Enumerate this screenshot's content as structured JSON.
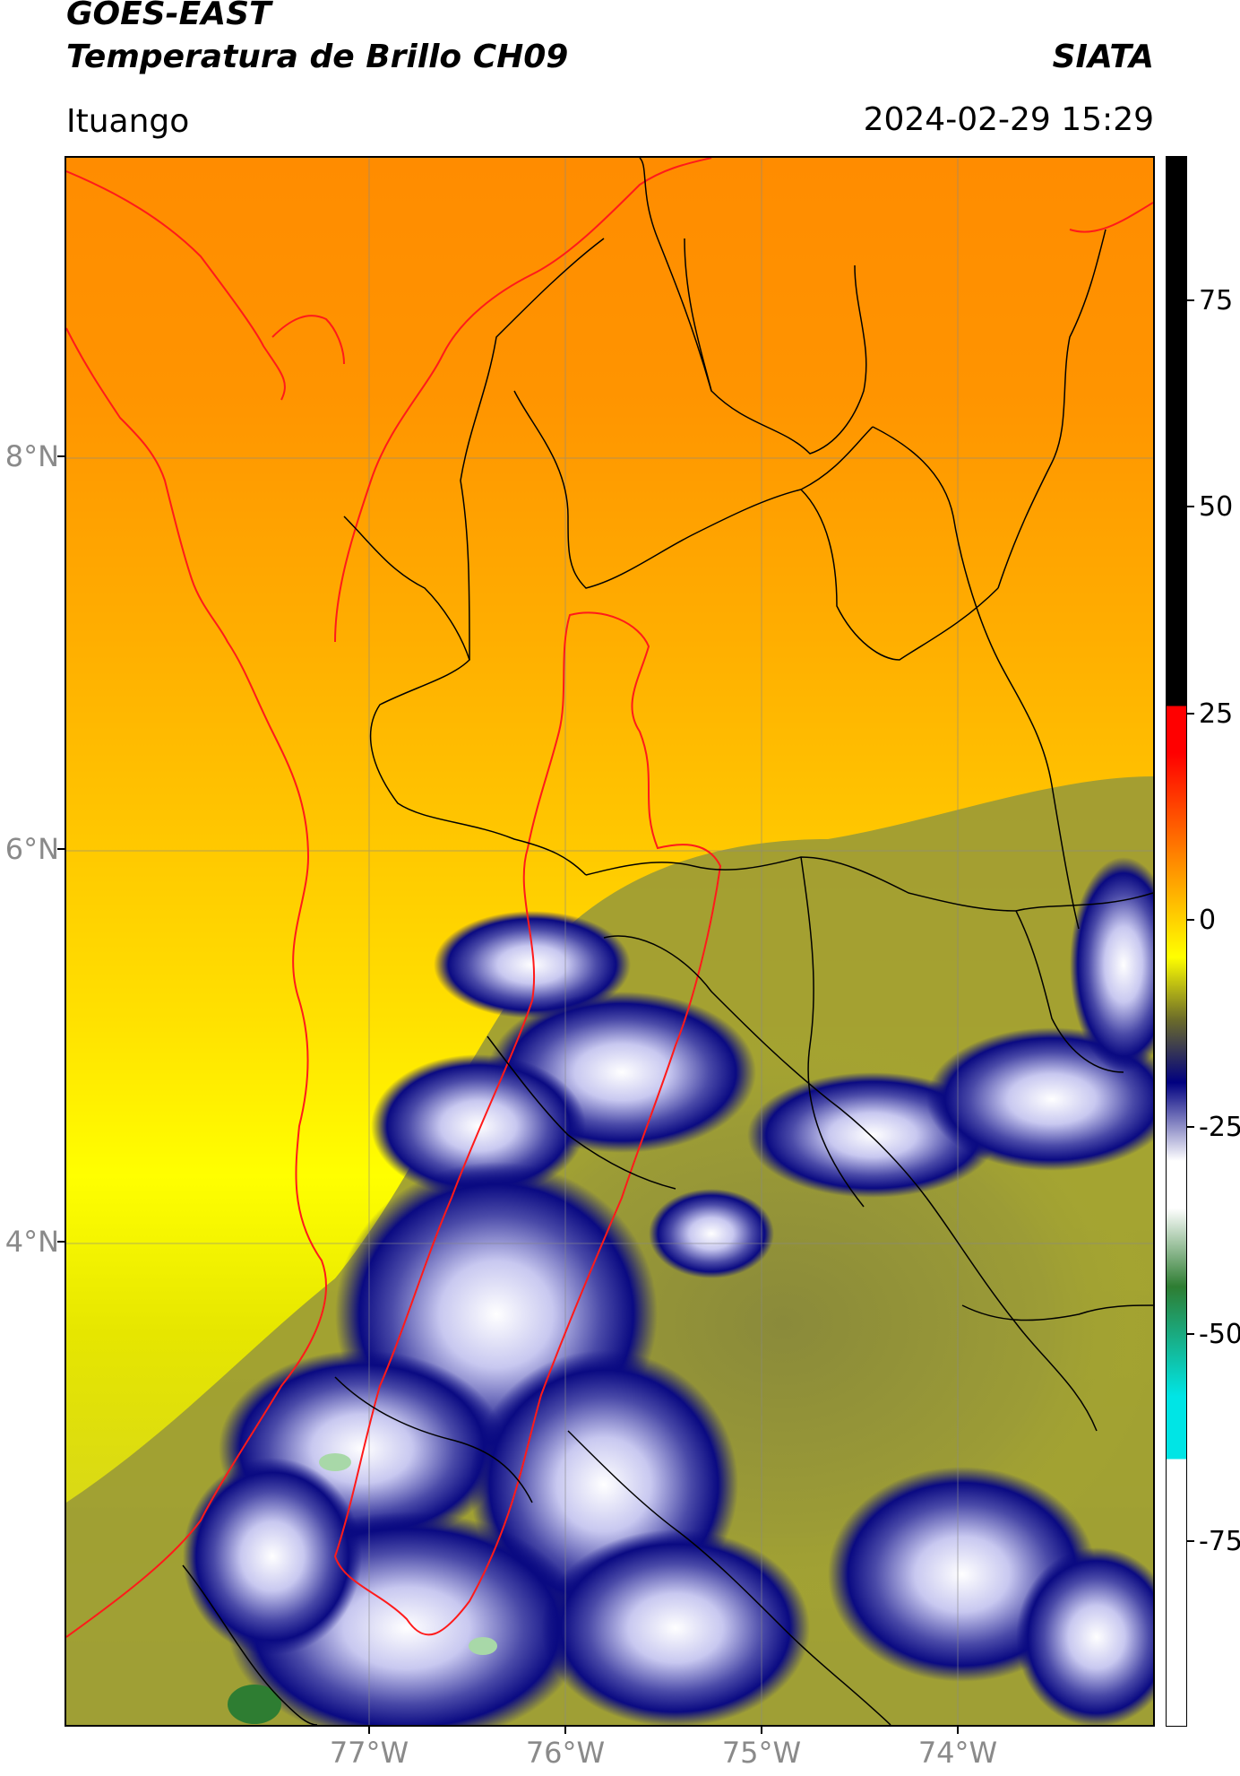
{
  "header": {
    "title_line1": "GOES-EAST",
    "title_line2": "Temperatura de Brillo CH09",
    "brand": "SIATA",
    "region": "Ituango",
    "datetime": "2024-02-29 15:29"
  },
  "map": {
    "latitude_labels": [
      "8°N",
      "6°N",
      "4°N"
    ],
    "longitude_labels": [
      "77°W",
      "76°W",
      "75°W",
      "74°W"
    ],
    "basin_outline_color": "#ff1a1a",
    "admin_boundary_color": "#000000"
  },
  "colorbar": {
    "tick_labels": [
      "75",
      "50",
      "25",
      "0",
      "-25",
      "-50",
      "-75"
    ],
    "colors": {
      "black_top": "#000000",
      "red": "#ff0000",
      "orange": "#ff8c00",
      "yellow": "#ffff00",
      "olive": "#6b6b2a",
      "navy": "#000080",
      "white": "#ffffff",
      "green": "#2e7d32",
      "cyan": "#00e5e5"
    }
  }
}
